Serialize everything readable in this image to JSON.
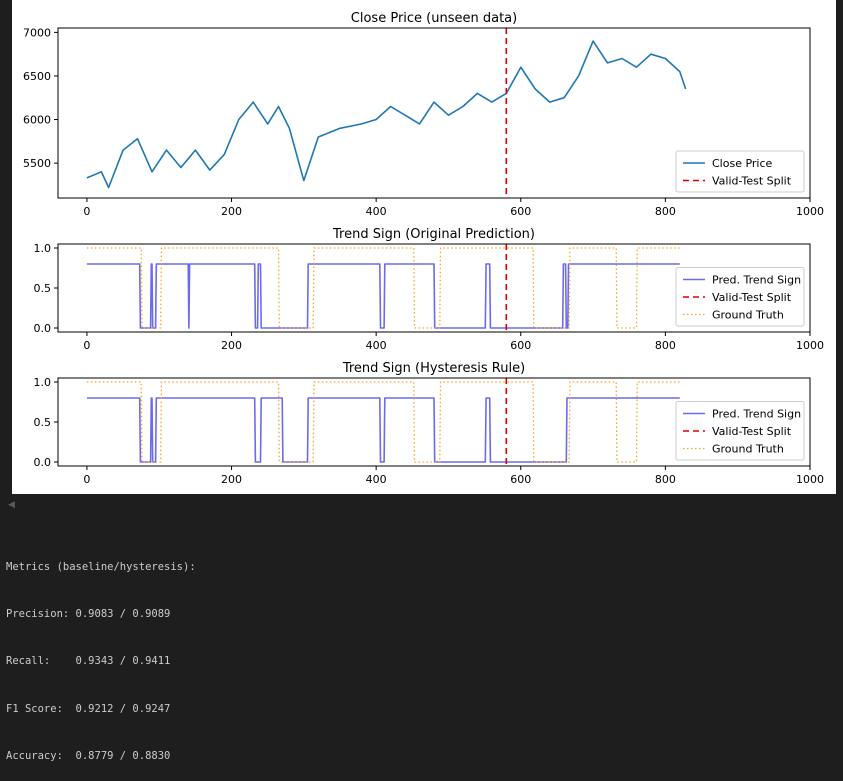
{
  "ui": {
    "scroll_arrow": "◀"
  },
  "console": {
    "lines": [
      "Metrics (baseline/hysteresis):",
      "Precision: 0.9083 / 0.9089",
      "Recall:    0.9343 / 0.9411",
      "F1 Score:  0.9212 / 0.9247",
      "Accuracy:  0.8779 / 0.8830"
    ]
  },
  "colors": {
    "price": "#1f77b4",
    "split": "#e00000",
    "pred": "#6b6bef",
    "truth": "#f5a623"
  },
  "chart_data": [
    {
      "type": "line",
      "title": "Close Price (unseen data)",
      "xlim": [
        -40,
        1000
      ],
      "ylim": [
        5100,
        7050
      ],
      "xticks": [
        0,
        200,
        400,
        600,
        800,
        1000
      ],
      "yticks": [
        5500,
        6000,
        6500,
        7000
      ],
      "grid": false,
      "legend_loc": "lower right",
      "split_x": 580,
      "series": [
        {
          "name": "Close Price",
          "style": "solid",
          "x": [
            0,
            20,
            30,
            50,
            70,
            90,
            110,
            130,
            150,
            170,
            190,
            210,
            230,
            250,
            265,
            280,
            300,
            320,
            350,
            380,
            400,
            420,
            440,
            460,
            480,
            500,
            520,
            540,
            560,
            580,
            600,
            620,
            640,
            660,
            680,
            700,
            720,
            740,
            760,
            780,
            800,
            820,
            828
          ],
          "y": [
            5330,
            5400,
            5220,
            5650,
            5780,
            5400,
            5650,
            5450,
            5650,
            5420,
            5600,
            6000,
            6200,
            5950,
            6150,
            5900,
            5300,
            5800,
            5900,
            5950,
            6000,
            6150,
            6050,
            5950,
            6200,
            6050,
            6150,
            6300,
            6200,
            6300,
            6600,
            6350,
            6200,
            6250,
            6500,
            6900,
            6650,
            6700,
            6600,
            6750,
            6700,
            6550,
            6350
          ]
        },
        {
          "name": "Valid-Test Split",
          "style": "dashed"
        }
      ]
    },
    {
      "type": "line",
      "title": "Trend Sign (Original Prediction)",
      "xlim": [
        -40,
        1000
      ],
      "ylim": [
        -0.05,
        1.05
      ],
      "xticks": [
        0,
        200,
        400,
        600,
        800,
        1000
      ],
      "yticks": [
        0.0,
        0.5,
        1.0
      ],
      "grid": false,
      "legend_loc": "lower right",
      "split_x": 580,
      "series": [
        {
          "name": "Pred. Trend Sign",
          "style": "solid",
          "x": [
            0,
            73,
            74,
            88,
            89,
            90,
            91,
            95,
            96,
            100,
            101,
            140,
            141,
            142,
            232,
            233,
            236,
            237,
            240,
            241,
            270,
            271,
            305,
            306,
            405,
            406,
            411,
            412,
            480,
            481,
            551,
            552,
            557,
            558,
            626,
            627,
            658,
            659,
            662,
            663,
            665,
            666,
            820
          ],
          "y": [
            0.8,
            0.8,
            0.0,
            0.0,
            0.8,
            0.8,
            0.0,
            0.0,
            0.8,
            0.8,
            0.8,
            0.8,
            0.0,
            0.8,
            0.8,
            0.0,
            0.0,
            0.8,
            0.8,
            0.0,
            0.0,
            0.0,
            0.0,
            0.8,
            0.8,
            0.0,
            0.0,
            0.8,
            0.8,
            0.0,
            0.0,
            0.8,
            0.8,
            0.0,
            0.0,
            0.0,
            0.0,
            0.8,
            0.8,
            0.0,
            0.0,
            0.8,
            0.8
          ]
        },
        {
          "name": "Valid-Test Split",
          "style": "dashed"
        },
        {
          "name": "Ground Truth",
          "style": "dotted",
          "x": [
            0,
            75,
            76,
            102,
            103,
            265,
            266,
            313,
            314,
            452,
            453,
            488,
            489,
            617,
            618,
            667,
            668,
            732,
            733,
            760,
            761,
            820
          ],
          "y": [
            1,
            1,
            0,
            0,
            1,
            1,
            0,
            0,
            1,
            1,
            0,
            0,
            1,
            1,
            0,
            0,
            1,
            1,
            0,
            0,
            1,
            1
          ]
        }
      ]
    },
    {
      "type": "line",
      "title": "Trend Sign (Hysteresis Rule)",
      "xlim": [
        -40,
        1000
      ],
      "ylim": [
        -0.05,
        1.05
      ],
      "xticks": [
        0,
        200,
        400,
        600,
        800,
        1000
      ],
      "yticks": [
        0.0,
        0.5,
        1.0
      ],
      "grid": false,
      "legend_loc": "lower right",
      "split_x": 580,
      "series": [
        {
          "name": "Pred. Trend Sign",
          "style": "solid",
          "x": [
            0,
            73,
            74,
            88,
            89,
            90,
            91,
            95,
            96,
            232,
            233,
            240,
            241,
            270,
            271,
            305,
            306,
            405,
            406,
            411,
            412,
            480,
            481,
            551,
            552,
            557,
            558,
            626,
            627,
            663,
            664,
            820
          ],
          "y": [
            0.8,
            0.8,
            0.0,
            0.0,
            0.8,
            0.8,
            0.0,
            0.0,
            0.8,
            0.8,
            0.0,
            0.0,
            0.8,
            0.8,
            0.0,
            0.0,
            0.8,
            0.8,
            0.0,
            0.0,
            0.8,
            0.8,
            0.0,
            0.0,
            0.8,
            0.8,
            0.0,
            0.0,
            0.0,
            0.0,
            0.8,
            0.8
          ]
        },
        {
          "name": "Valid-Test Split",
          "style": "dashed"
        },
        {
          "name": "Ground Truth",
          "style": "dotted",
          "x": [
            0,
            75,
            76,
            102,
            103,
            265,
            266,
            313,
            314,
            452,
            453,
            488,
            489,
            617,
            618,
            667,
            668,
            732,
            733,
            760,
            761,
            820
          ],
          "y": [
            1,
            1,
            0,
            0,
            1,
            1,
            0,
            0,
            1,
            1,
            0,
            0,
            1,
            1,
            0,
            0,
            1,
            1,
            0,
            0,
            1,
            1
          ]
        }
      ]
    }
  ]
}
